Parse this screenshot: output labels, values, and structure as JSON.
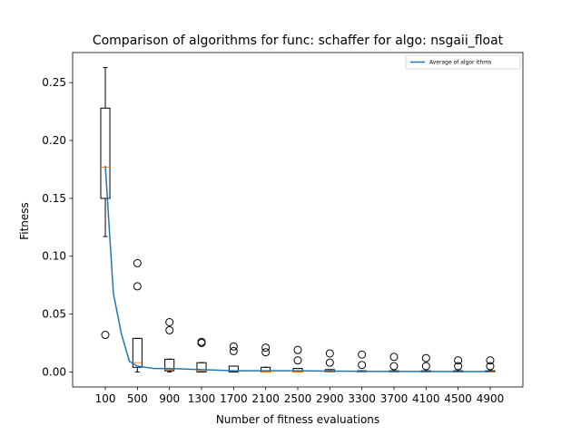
{
  "chart_data": {
    "type": "box",
    "title": "Comparison of algorithms for func: schaffer for algo: nsgaii_float",
    "xlabel": "Number of fitness evaluations",
    "ylabel": "Fitness",
    "categories": [
      "100",
      "500",
      "900",
      "1300",
      "1700",
      "2100",
      "2500",
      "2900",
      "3300",
      "3700",
      "4100",
      "4500",
      "4900"
    ],
    "ylim": [
      -0.013,
      0.276
    ],
    "yticks": [
      0.0,
      0.05,
      0.1,
      0.15,
      0.2,
      0.25
    ],
    "ytick_labels": [
      "0.00",
      "0.05",
      "0.10",
      "0.15",
      "0.20",
      "0.25"
    ],
    "grid": false,
    "legend_position": "top-right",
    "boxes": [
      {
        "x": 100,
        "whisker_low": 0.117,
        "q1": 0.15,
        "median": 0.177,
        "q3": 0.228,
        "whisker_high": 0.263,
        "outliers": [
          0.032
        ]
      },
      {
        "x": 500,
        "whisker_low": 0.0,
        "q1": 0.004,
        "median": 0.008,
        "q3": 0.029,
        "whisker_high": 0.029,
        "outliers": [
          0.074,
          0.094
        ]
      },
      {
        "x": 900,
        "whisker_low": 0.0,
        "q1": 0.001,
        "median": 0.002,
        "q3": 0.011,
        "whisker_high": 0.011,
        "outliers": [
          0.036,
          0.043
        ]
      },
      {
        "x": 1300,
        "whisker_low": 0.0,
        "q1": 0.0,
        "median": 0.001,
        "q3": 0.008,
        "whisker_high": 0.008,
        "outliers": [
          0.025,
          0.026
        ]
      },
      {
        "x": 1700,
        "whisker_low": 0.0,
        "q1": 0.0,
        "median": 0.001,
        "q3": 0.005,
        "whisker_high": 0.005,
        "outliers": [
          0.018,
          0.022
        ]
      },
      {
        "x": 2100,
        "whisker_low": 0.0,
        "q1": 0.0,
        "median": 0.0,
        "q3": 0.004,
        "whisker_high": 0.004,
        "outliers": [
          0.017,
          0.021
        ]
      },
      {
        "x": 2500,
        "whisker_low": 0.0,
        "q1": 0.0,
        "median": 0.0,
        "q3": 0.003,
        "whisker_high": 0.003,
        "outliers": [
          0.01,
          0.019
        ]
      },
      {
        "x": 2900,
        "whisker_low": 0.0,
        "q1": 0.0,
        "median": 0.0,
        "q3": 0.002,
        "whisker_high": 0.002,
        "outliers": [
          0.008,
          0.016
        ]
      },
      {
        "x": 3300,
        "whisker_low": 0.0,
        "q1": 0.0,
        "median": 0.0,
        "q3": 0.001,
        "whisker_high": 0.001,
        "outliers": [
          0.006,
          0.015
        ]
      },
      {
        "x": 3700,
        "whisker_low": 0.0,
        "q1": 0.0,
        "median": 0.0,
        "q3": 0.001,
        "whisker_high": 0.001,
        "outliers": [
          0.005,
          0.013
        ]
      },
      {
        "x": 4100,
        "whisker_low": 0.0,
        "q1": 0.0,
        "median": 0.0,
        "q3": 0.001,
        "whisker_high": 0.001,
        "outliers": [
          0.005,
          0.012
        ]
      },
      {
        "x": 4500,
        "whisker_low": 0.0,
        "q1": 0.0,
        "median": 0.0,
        "q3": 0.001,
        "whisker_high": 0.001,
        "outliers": [
          0.005,
          0.01
        ]
      },
      {
        "x": 4900,
        "whisker_low": 0.0,
        "q1": 0.0,
        "median": 0.0,
        "q3": 0.001,
        "whisker_high": 0.001,
        "outliers": [
          0.005,
          0.01
        ]
      }
    ],
    "series": [
      {
        "name": "Average of algor ithms",
        "type": "line",
        "color": "#1f77b4",
        "points": [
          {
            "x": 100,
            "y": 0.178
          },
          {
            "x": 200,
            "y": 0.068
          },
          {
            "x": 300,
            "y": 0.033
          },
          {
            "x": 400,
            "y": 0.009
          },
          {
            "x": 500,
            "y": 0.005
          },
          {
            "x": 700,
            "y": 0.003
          },
          {
            "x": 900,
            "y": 0.003
          },
          {
            "x": 1300,
            "y": 0.002
          },
          {
            "x": 1700,
            "y": 0.001
          },
          {
            "x": 2100,
            "y": 0.001
          },
          {
            "x": 2500,
            "y": 0.001
          },
          {
            "x": 2900,
            "y": 0.0007
          },
          {
            "x": 3300,
            "y": 0.0005
          },
          {
            "x": 3700,
            "y": 0.0004
          },
          {
            "x": 4100,
            "y": 0.0004
          },
          {
            "x": 4500,
            "y": 0.0003
          },
          {
            "x": 4900,
            "y": 0.0003
          }
        ]
      }
    ],
    "colors": {
      "box": "#000000",
      "median": "#ff7f0e",
      "flier": "#000000",
      "line": "#1f77b4"
    }
  }
}
